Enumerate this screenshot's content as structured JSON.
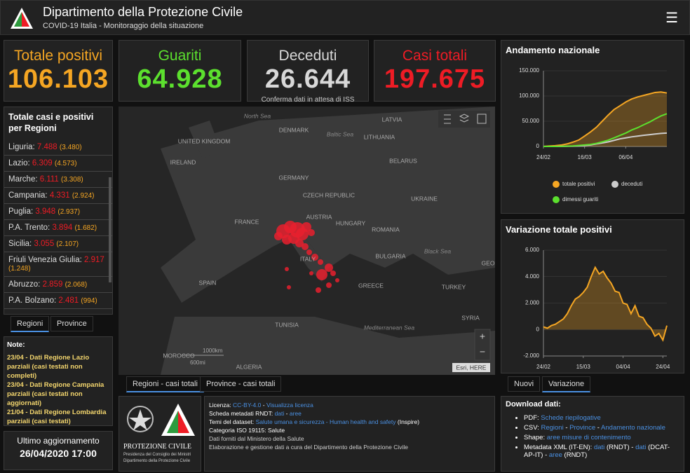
{
  "header": {
    "title": "Dipartimento della Protezione Civile",
    "subtitle": "COVID-19 Italia - Monitoraggio della situazione"
  },
  "kpis": [
    {
      "label": "Totale positivi",
      "value": "106.103",
      "label_color": "#f5a623",
      "value_color": "#f5a623"
    },
    {
      "label": "Guariti",
      "value": "64.928",
      "label_color": "#5ce02e",
      "value_color": "#5ce02e"
    },
    {
      "label": "Deceduti",
      "value": "26.644",
      "note": "Conferma dati in attesa di ISS",
      "label_color": "#d8d8d8",
      "value_color": "#d8d8d8"
    },
    {
      "label": "Casi totali",
      "value": "197.675",
      "label_color": "#ee1c25",
      "value_color": "#ee1c25"
    }
  ],
  "regions": {
    "title": "Totale casi e positivi per Regioni",
    "rows": [
      {
        "name": "Liguria:",
        "total": "7.488",
        "positive": "(3.480)"
      },
      {
        "name": "Lazio:",
        "total": "6.309",
        "positive": "(4.573)"
      },
      {
        "name": "Marche:",
        "total": "6.111",
        "positive": "(3.308)"
      },
      {
        "name": "Campania:",
        "total": "4.331",
        "positive": "(2.924)"
      },
      {
        "name": "Puglia:",
        "total": "3.948",
        "positive": "(2.937)"
      },
      {
        "name": "P.A. Trento:",
        "total": "3.894",
        "positive": "(1.682)"
      },
      {
        "name": "Sicilia:",
        "total": "3.055",
        "positive": "(2.107)"
      },
      {
        "name": "Friuli Venezia Giulia:",
        "total": "2.917",
        "positive": "(1.248)"
      },
      {
        "name": "Abruzzo:",
        "total": "2.859",
        "positive": "(2.068)"
      },
      {
        "name": "P.A. Bolzano:",
        "total": "2.481",
        "positive": "(994)"
      }
    ],
    "tabs": [
      "Regioni",
      "Province"
    ]
  },
  "notes": {
    "title": "Note:",
    "lines": [
      "23/04 - Dati Regione Lazio parziali (casi testati non completi)",
      "23/04 - Dati Regione Campania parziali (casi testati non aggiornati)",
      "21/04 - Dati Regione Lombardia parziali (casi testati)"
    ]
  },
  "update": {
    "label": "Ultimo aggiornamento",
    "value": "26/04/2020 17:00"
  },
  "map": {
    "labels": [
      "North Sea",
      "DENMARK",
      "Baltic Sea",
      "LATVIA",
      "LITHUANIA",
      "UNITED KINGDOM",
      "IRELAND",
      "BELARUS",
      "GERMANY",
      "CZECH REPUBLIC",
      "UKRAINE",
      "FRANCE",
      "AUSTRIA",
      "HUNGARY",
      "ROMANIA",
      "Black Sea",
      "BULGARIA",
      "ITALY",
      "GEO",
      "SPAIN",
      "GREECE",
      "TURKEY",
      "TUNISIA",
      "Mediterranean Sea",
      "SYRIA",
      "MOROCCO",
      "ALGERIA"
    ],
    "scale": [
      "1000km",
      "600mi"
    ],
    "attribution": "Esri, HERE",
    "zoom": [
      "+",
      "−"
    ],
    "tabs": [
      "Regioni - casi totali",
      "Province - casi totali"
    ]
  },
  "chart_data": [
    {
      "type": "line",
      "title": "Andamento nazionale",
      "categories": [
        "24/02",
        null,
        null,
        null,
        null,
        null,
        null,
        "16/03",
        null,
        null,
        null,
        null,
        null,
        null,
        "06/04",
        null,
        null,
        null,
        null,
        null,
        null,
        null
      ],
      "ylim": [
        0,
        150000
      ],
      "yticks": [
        {
          "value": 0,
          "label": "0"
        },
        {
          "value": 50000,
          "label": "50.000"
        },
        {
          "value": 100000,
          "label": "100.000"
        },
        {
          "value": 150000,
          "label": "150.000"
        }
      ],
      "grid": true,
      "series": [
        {
          "name": "totale positivi",
          "color": "#f5a623",
          "area": true,
          "values": [
            200,
            800,
            1600,
            2700,
            5000,
            8500,
            12800,
            20600,
            28700,
            38000,
            50000,
            62000,
            73000,
            80500,
            88000,
            94000,
            98000,
            101000,
            104000,
            107000,
            108000,
            106000
          ]
        },
        {
          "name": "deceduti",
          "color": "#cccccc",
          "area": false,
          "values": [
            0,
            0,
            0,
            100,
            300,
            600,
            1000,
            2000,
            3000,
            5000,
            7000,
            9000,
            12000,
            15000,
            17000,
            19000,
            20500,
            22000,
            23200,
            24600,
            25800,
            26600
          ]
        },
        {
          "name": "dimessi guariti",
          "color": "#5ce02e",
          "area": false,
          "values": [
            0,
            0,
            0,
            300,
            600,
            1000,
            1900,
            3000,
            4000,
            6100,
            9000,
            12400,
            17000,
            21800,
            26500,
            32500,
            37000,
            42700,
            48000,
            54500,
            60500,
            64900
          ]
        }
      ]
    },
    {
      "type": "line",
      "title": "Variazione totale positivi",
      "categories": [
        "24/02",
        null,
        null,
        null,
        null,
        null,
        null,
        null,
        null,
        null,
        "15/03",
        null,
        null,
        null,
        null,
        null,
        null,
        null,
        null,
        null,
        "04/04",
        null,
        null,
        null,
        null,
        null,
        null,
        null,
        null,
        null,
        "24/04",
        null
      ],
      "ylim": [
        -2000,
        6000
      ],
      "yticks": [
        {
          "value": -2000,
          "label": "-2.000"
        },
        {
          "value": 0,
          "label": "0"
        },
        {
          "value": 2000,
          "label": "2.000"
        },
        {
          "value": 4000,
          "label": "4.000"
        },
        {
          "value": 6000,
          "label": "6.000"
        }
      ],
      "grid": true,
      "series": [
        {
          "color": "#f5a623",
          "area": true,
          "values": [
            200,
            100,
            300,
            400,
            600,
            800,
            1200,
            1800,
            2300,
            2500,
            2800,
            3200,
            4000,
            4700,
            4200,
            4400,
            3900,
            3500,
            2900,
            2800,
            2000,
            1900,
            1200,
            1800,
            1000,
            900,
            400,
            100,
            -500,
            -300,
            -800,
            300
          ]
        }
      ],
      "tabs": [
        "Nuovi",
        "Variazione"
      ]
    }
  ],
  "footer": {
    "logo_text": [
      "PROTEZIONE CIVILE",
      "Presidenza del Consiglio dei Ministri",
      "Dipartimento della Protezione Civile"
    ],
    "info": [
      [
        {
          "text": "Licenza:",
          "color": "#ffffff"
        },
        {
          "text": "CC-BY-4.0",
          "color": "#4a90e2"
        },
        {
          "text": "-",
          "color": "#ffffff"
        },
        {
          "text": "Visualizza licenza",
          "color": "#4a90e2"
        }
      ],
      [
        {
          "text": "Scheda metadati RNDT:",
          "color": "#ffffff"
        },
        {
          "text": "dati",
          "color": "#4a90e2"
        },
        {
          "text": "-",
          "color": "#ffffff"
        },
        {
          "text": "aree",
          "color": "#4a90e2"
        }
      ],
      [
        {
          "text": "Temi del dataset:",
          "color": "#ffffff"
        },
        {
          "text": "Salute umana e sicurezza - Human health and safety",
          "color": "#4a90e2"
        },
        {
          "text": "(Inspire)",
          "color": "#ffffff"
        }
      ],
      [
        {
          "text": "Categoria ISO 19115:",
          "color": "#ffffff"
        },
        {
          "text": "Salute",
          "color": "#ffffff"
        }
      ],
      [
        {
          "text": "Dati forniti dal Ministero della Salute",
          "color": "#cccccc"
        }
      ],
      [
        {
          "text": "Elaborazione e gestione dati a cura del Dipartimento della Protezione Civile",
          "color": "#cccccc"
        }
      ]
    ],
    "download_title": "Download dati:",
    "download": [
      [
        {
          "text": "PDF:",
          "color": "#ffffff"
        },
        {
          "text": "Schede riepilogative",
          "color": "#4a90e2"
        }
      ],
      [
        {
          "text": "CSV:",
          "color": "#ffffff"
        },
        {
          "text": "Regioni",
          "color": "#4a90e2"
        },
        {
          "text": "-",
          "color": "#ffffff"
        },
        {
          "text": "Province",
          "color": "#4a90e2"
        },
        {
          "text": "-",
          "color": "#ffffff"
        },
        {
          "text": "Andamento nazionale",
          "color": "#4a90e2"
        }
      ],
      [
        {
          "text": "Shape:",
          "color": "#ffffff"
        },
        {
          "text": "aree misure di contenimento",
          "color": "#4a90e2"
        }
      ],
      [
        {
          "text": "Metadata XML (IT-EN):",
          "color": "#ffffff"
        },
        {
          "text": "dati",
          "color": "#4a90e2"
        },
        {
          "text": "(RNDT) -",
          "color": "#ffffff"
        },
        {
          "text": "dati",
          "color": "#4a90e2"
        },
        {
          "text": "(DCAT-AP-IT) -",
          "color": "#ffffff"
        },
        {
          "text": "aree",
          "color": "#4a90e2"
        },
        {
          "text": "(RNDT)",
          "color": "#ffffff"
        }
      ]
    ]
  }
}
